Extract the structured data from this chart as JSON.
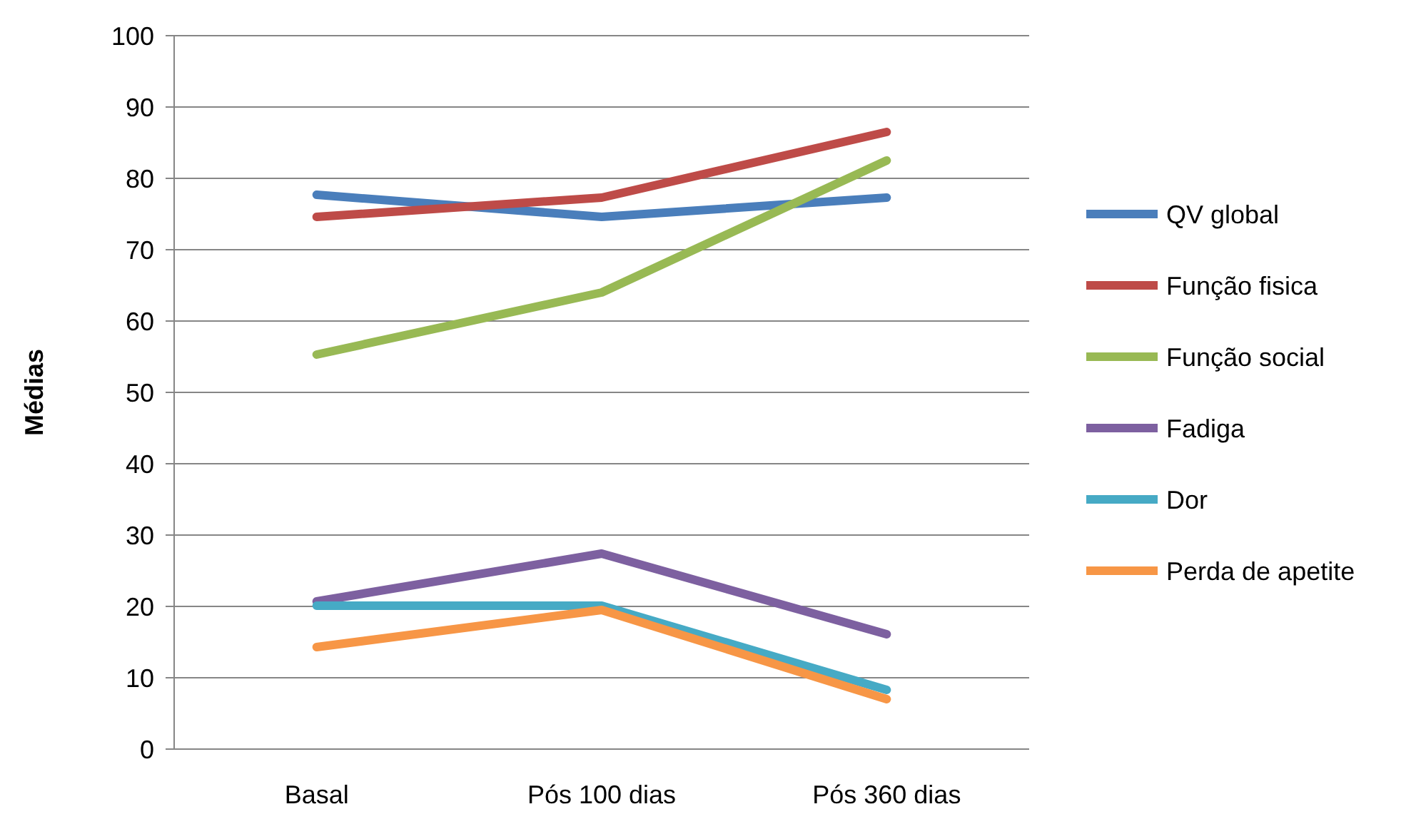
{
  "chart_data": {
    "type": "line",
    "ylabel": "Médias",
    "categories": [
      "Basal",
      "Pós 100 dias",
      "Pós 360 dias"
    ],
    "ylim": [
      0,
      100
    ],
    "yticks": [
      0,
      10,
      20,
      30,
      40,
      50,
      60,
      70,
      80,
      90,
      100
    ],
    "grid": "y",
    "legend": "right",
    "marker": "none",
    "series": [
      {
        "name": "QV global",
        "color": "#4a7ebb",
        "values": [
          77.7,
          74.6,
          77.3
        ]
      },
      {
        "name": "Função fisica",
        "color": "#be4b48",
        "values": [
          74.6,
          77.3,
          86.5
        ]
      },
      {
        "name": "Função social",
        "color": "#98b954",
        "values": [
          55.3,
          64.0,
          82.5
        ]
      },
      {
        "name": "Fadiga",
        "color": "#7d60a0",
        "values": [
          20.7,
          27.4,
          16.1
        ]
      },
      {
        "name": "Dor",
        "color": "#46aac5",
        "values": [
          20.1,
          20.1,
          8.3
        ]
      },
      {
        "name": "Perda de apetite",
        "color": "#f79646",
        "values": [
          14.3,
          19.5,
          7.0
        ]
      }
    ]
  }
}
